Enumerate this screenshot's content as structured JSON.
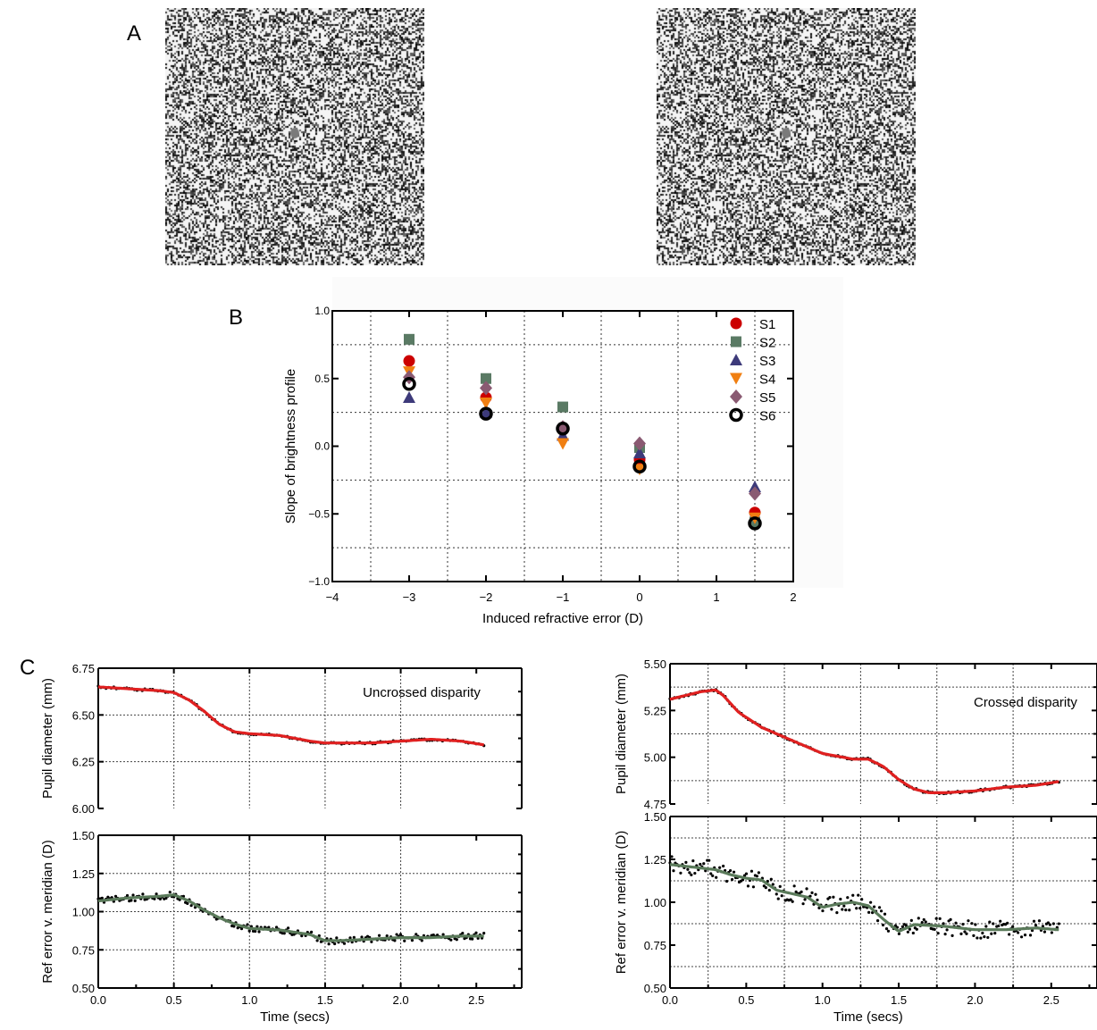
{
  "panels": {
    "a_label": "A",
    "b_label": "B",
    "c_label": "C"
  },
  "chart_data": [
    {
      "type": "scatter",
      "panel": "B",
      "title": "",
      "xlabel": "Induced refractive error (D)",
      "ylabel": "Slope of brightness profile",
      "xlim": [
        -4,
        2
      ],
      "ylim": [
        -1.0,
        1.0
      ],
      "x_ticks": [
        "−4",
        "−3",
        "−2",
        "−1",
        "0",
        "1",
        "2"
      ],
      "y_ticks": [
        "−1.0",
        "−0.5",
        "0.0",
        "0.5",
        "1.0"
      ],
      "grid": true,
      "legend_position": "top-right",
      "series": [
        {
          "name": "S1",
          "marker": "circle",
          "color": "#cc0000",
          "points": [
            [
              -3,
              0.63
            ],
            [
              -2,
              0.36
            ],
            [
              -1,
              0.12
            ],
            [
              0,
              -0.1
            ],
            [
              1.5,
              -0.49
            ]
          ]
        },
        {
          "name": "S2",
          "marker": "square",
          "color": "#5a7a64",
          "points": [
            [
              -3,
              0.79
            ],
            [
              -2,
              0.5
            ],
            [
              -1,
              0.29
            ],
            [
              0,
              -0.01
            ],
            [
              1.5,
              -0.56
            ]
          ]
        },
        {
          "name": "S3",
          "marker": "triangle-up",
          "color": "#3d3a7a",
          "points": [
            [
              -3,
              0.36
            ],
            [
              -2,
              0.25
            ],
            [
              -1,
              0.08
            ],
            [
              0,
              -0.05
            ],
            [
              1.5,
              -0.3
            ]
          ]
        },
        {
          "name": "S4",
          "marker": "triangle-down",
          "color": "#f07f12",
          "points": [
            [
              -3,
              0.55
            ],
            [
              -2,
              0.32
            ],
            [
              -1,
              0.02
            ],
            [
              0,
              -0.17
            ],
            [
              1.5,
              -0.53
            ]
          ]
        },
        {
          "name": "S5",
          "marker": "diamond",
          "color": "#8a5a72",
          "points": [
            [
              -3,
              0.51
            ],
            [
              -2,
              0.43
            ],
            [
              -1,
              0.14
            ],
            [
              0,
              0.02
            ],
            [
              1.5,
              -0.35
            ]
          ]
        },
        {
          "name": "S6",
          "marker": "open-circle",
          "color": "#000000",
          "points": [
            [
              -3,
              0.46
            ],
            [
              -2,
              0.24
            ],
            [
              -1,
              0.13
            ],
            [
              0,
              -0.15
            ],
            [
              1.5,
              -0.57
            ]
          ]
        }
      ]
    },
    {
      "type": "line",
      "panel": "C-left-top",
      "annotation": "Uncrossed disparity",
      "ylabel": "Pupil diameter (mm)",
      "xlim": [
        0,
        2.8
      ],
      "ylim": [
        6.0,
        6.75
      ],
      "y_ticks": [
        "6.75",
        "6.50",
        "6.25",
        "6.00"
      ],
      "color": "#e02020",
      "x": [
        0.0,
        0.2,
        0.4,
        0.5,
        0.6,
        0.7,
        0.8,
        0.9,
        1.0,
        1.2,
        1.4,
        1.5,
        1.6,
        1.8,
        2.0,
        2.2,
        2.4,
        2.55
      ],
      "values": [
        6.65,
        6.64,
        6.63,
        6.62,
        6.58,
        6.52,
        6.45,
        6.41,
        6.4,
        6.39,
        6.36,
        6.35,
        6.35,
        6.35,
        6.36,
        6.37,
        6.36,
        6.34
      ]
    },
    {
      "type": "line",
      "panel": "C-left-bottom",
      "ylabel": "Ref error v. meridian (D)",
      "xlabel": "Time (secs)",
      "xlim": [
        0,
        2.8
      ],
      "ylim": [
        0.5,
        1.5
      ],
      "x_ticks": [
        "0.0",
        "0.5",
        "1.0",
        "1.5",
        "2.0",
        "2.5"
      ],
      "y_ticks": [
        "1.50",
        "1.25",
        "1.00",
        "0.75",
        "0.50"
      ],
      "color": "#5a7a5a",
      "x": [
        0.0,
        0.2,
        0.4,
        0.5,
        0.6,
        0.7,
        0.8,
        0.9,
        1.0,
        1.2,
        1.4,
        1.5,
        1.6,
        1.8,
        2.0,
        2.2,
        2.4,
        2.55
      ],
      "values": [
        1.07,
        1.09,
        1.1,
        1.11,
        1.07,
        1.01,
        0.96,
        0.92,
        0.89,
        0.88,
        0.85,
        0.81,
        0.81,
        0.82,
        0.83,
        0.83,
        0.84,
        0.84
      ]
    },
    {
      "type": "line",
      "panel": "C-right-top",
      "annotation": "Crossed disparity",
      "ylabel": "Pupil diameter (mm)",
      "xlim": [
        0,
        2.8
      ],
      "ylim": [
        4.75,
        5.5
      ],
      "y_ticks": [
        "5.50",
        "5.25",
        "5.00",
        "4.75"
      ],
      "color": "#e02020",
      "x": [
        0.0,
        0.1,
        0.2,
        0.3,
        0.35,
        0.45,
        0.6,
        0.8,
        1.0,
        1.2,
        1.3,
        1.4,
        1.5,
        1.6,
        1.7,
        1.8,
        2.0,
        2.2,
        2.4,
        2.55
      ],
      "values": [
        5.31,
        5.33,
        5.35,
        5.36,
        5.33,
        5.24,
        5.16,
        5.09,
        5.02,
        4.99,
        4.99,
        4.95,
        4.88,
        4.83,
        4.81,
        4.81,
        4.82,
        4.84,
        4.85,
        4.87
      ]
    },
    {
      "type": "line",
      "panel": "C-right-bottom",
      "ylabel": "Ref error v. meridian (D)",
      "xlabel": "Time (secs)",
      "xlim": [
        0,
        2.8
      ],
      "ylim": [
        0.5,
        1.5
      ],
      "x_ticks": [
        "0.0",
        "0.5",
        "1.0",
        "1.5",
        "2.0",
        "2.5"
      ],
      "y_ticks": [
        "1.50",
        "1.25",
        "1.00",
        "0.75",
        "0.50"
      ],
      "color": "#5a7a5a",
      "x": [
        0.0,
        0.1,
        0.2,
        0.3,
        0.4,
        0.5,
        0.6,
        0.7,
        0.8,
        0.9,
        1.0,
        1.1,
        1.2,
        1.3,
        1.4,
        1.5,
        1.6,
        1.8,
        2.0,
        2.2,
        2.4,
        2.55
      ],
      "values": [
        1.22,
        1.21,
        1.2,
        1.19,
        1.16,
        1.14,
        1.13,
        1.07,
        1.05,
        1.03,
        0.97,
        0.99,
        1.0,
        0.98,
        0.9,
        0.83,
        0.87,
        0.86,
        0.84,
        0.84,
        0.85,
        0.84
      ]
    }
  ]
}
